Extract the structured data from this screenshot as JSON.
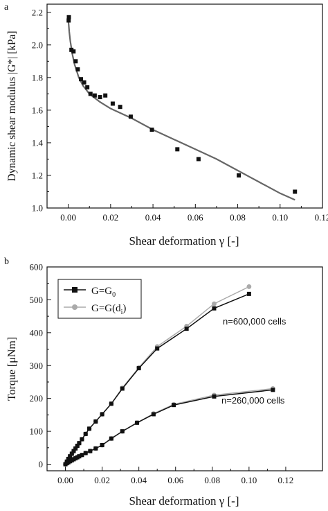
{
  "panels": [
    {
      "letter": "a"
    },
    {
      "letter": "b"
    }
  ],
  "colors": {
    "axis": "#111111",
    "fit": "#666666",
    "marker_dark": "#111111",
    "marker_light": "#aaaaaa"
  },
  "chart_data": [
    {
      "type": "scatter",
      "title": "",
      "xlabel": "Shear deformation γ [-]",
      "ylabel": "Dynamic shear modulus |G*| [kPa]",
      "xlim": [
        -0.01,
        0.12
      ],
      "ylim": [
        1.0,
        2.25
      ],
      "x_ticks": [
        "0.00",
        "0.02",
        "0.04",
        "0.06",
        "0.08",
        "0.10",
        "0.12"
      ],
      "y_ticks": [
        "1.0",
        "1.2",
        "1.4",
        "1.6",
        "1.8",
        "2.0",
        "2.2"
      ],
      "grid": false,
      "series": [
        {
          "kind": "points",
          "marker": "square",
          "x": [
            0.0002,
            0.0003,
            0.0015,
            0.0025,
            0.0035,
            0.0045,
            0.006,
            0.0075,
            0.009,
            0.0105,
            0.0125,
            0.015,
            0.0175,
            0.021,
            0.0245,
            0.0295,
            0.0395,
            0.0515,
            0.0615,
            0.0805,
            0.107
          ],
          "y": [
            2.15,
            2.17,
            1.97,
            1.96,
            1.9,
            1.85,
            1.79,
            1.77,
            1.74,
            1.7,
            1.69,
            1.68,
            1.69,
            1.64,
            1.62,
            1.56,
            1.48,
            1.36,
            1.3,
            1.2,
            1.1
          ]
        },
        {
          "kind": "line",
          "x": [
            0.0,
            0.0005,
            0.001,
            0.002,
            0.003,
            0.005,
            0.007,
            0.01,
            0.015,
            0.02,
            0.03,
            0.04,
            0.05,
            0.06,
            0.07,
            0.08,
            0.09,
            0.1,
            0.107
          ],
          "y": [
            2.16,
            2.08,
            2.02,
            1.94,
            1.88,
            1.8,
            1.75,
            1.7,
            1.65,
            1.61,
            1.55,
            1.48,
            1.42,
            1.36,
            1.3,
            1.23,
            1.16,
            1.09,
            1.05
          ]
        }
      ]
    },
    {
      "type": "line",
      "title": "",
      "xlabel": "Shear deformation γ [-]",
      "ylabel": "Torque [μNm]",
      "xlim": [
        -0.01,
        0.14
      ],
      "ylim": [
        -20,
        600
      ],
      "x_ticks": [
        "0.00",
        "0.02",
        "0.04",
        "0.06",
        "0.08",
        "0.10",
        "0.12"
      ],
      "y_ticks": [
        "0",
        "100",
        "200",
        "300",
        "400",
        "500",
        "600"
      ],
      "grid": false,
      "legend_position": "top-left",
      "annotations": [
        "n=600,000 cells",
        "n=260,000 cells"
      ],
      "series": [
        {
          "name": "G=G0",
          "color": "#111111",
          "marker": "square",
          "group": "n=600,000 cells",
          "x": [
            0.0,
            0.0008,
            0.0016,
            0.0025,
            0.0035,
            0.0045,
            0.0055,
            0.0065,
            0.0075,
            0.009,
            0.011,
            0.013,
            0.0165,
            0.02,
            0.025,
            0.031,
            0.04,
            0.05,
            0.066,
            0.081,
            0.1
          ],
          "y": [
            0,
            8,
            16,
            24,
            32,
            40,
            48,
            56,
            64,
            76,
            92,
            108,
            130,
            152,
            184,
            230,
            292,
            352,
            412,
            474,
            518
          ]
        },
        {
          "name": "G=G(di)",
          "color": "#aaaaaa",
          "marker": "circle",
          "group": "n=600,000 cells",
          "x": [
            0.0,
            0.0008,
            0.0016,
            0.0025,
            0.0035,
            0.0045,
            0.0055,
            0.0065,
            0.0075,
            0.009,
            0.011,
            0.013,
            0.0165,
            0.02,
            0.025,
            0.031,
            0.04,
            0.05,
            0.066,
            0.081,
            0.1
          ],
          "y": [
            0,
            8,
            16,
            24,
            32,
            40,
            48,
            56,
            64,
            76,
            92,
            108,
            130,
            152,
            184,
            232,
            294,
            358,
            420,
            488,
            540
          ]
        },
        {
          "color": "#111111",
          "marker": "square",
          "group": "n=260,000 cells",
          "x": [
            0.0,
            0.0008,
            0.0016,
            0.0025,
            0.0035,
            0.0045,
            0.0055,
            0.0065,
            0.0075,
            0.009,
            0.011,
            0.0135,
            0.0165,
            0.02,
            0.025,
            0.031,
            0.039,
            0.048,
            0.059,
            0.081,
            0.113
          ],
          "y": [
            0,
            3,
            6,
            9,
            12,
            15,
            18,
            21,
            24,
            28,
            34,
            40,
            48,
            58,
            78,
            100,
            126,
            152,
            180,
            206,
            226
          ]
        },
        {
          "color": "#aaaaaa",
          "marker": "circle",
          "group": "n=260,000 cells",
          "x": [
            0.0,
            0.0008,
            0.0016,
            0.0025,
            0.0035,
            0.0045,
            0.0055,
            0.0065,
            0.0075,
            0.009,
            0.011,
            0.0135,
            0.0165,
            0.02,
            0.025,
            0.031,
            0.039,
            0.048,
            0.059,
            0.081,
            0.113
          ],
          "y": [
            0,
            3,
            6,
            9,
            12,
            15,
            18,
            21,
            24,
            28,
            34,
            40,
            48,
            58,
            78,
            100,
            126,
            154,
            182,
            210,
            230
          ]
        }
      ]
    }
  ]
}
